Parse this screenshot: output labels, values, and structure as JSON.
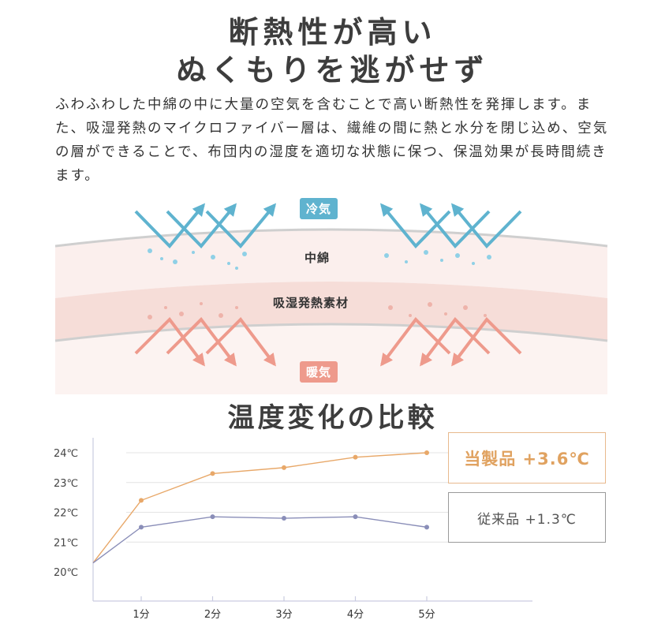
{
  "heading": {
    "line1": "断熱性が高い",
    "line2": "ぬくもりを逃がせず"
  },
  "description": "ふわふわした中綿の中に大量の空気を含むことで高い断熱性を発揮します。また、吸湿発熱のマイクロファイバー層は、繊維の間に熱と水分を閉じ込め、空気の層ができることで、布団内の湿度を適切な状態に保つ、保温効果が長時間続きます。",
  "diagram": {
    "cool_label": "冷気",
    "warm_label": "暖気",
    "layer_top": "中綿",
    "layer_bottom": "吸湿発熱素材",
    "colors": {
      "cool": "#5fb3cf",
      "warm": "#ee9a8c",
      "layer_top": "#fbeeec",
      "layer_bottom": "#f6dcd7"
    }
  },
  "chart_data": {
    "type": "line",
    "title": "温度変化の比較",
    "categories": [
      "1分",
      "2分",
      "3分",
      "4分",
      "5分"
    ],
    "y_ticks": [
      "20℃",
      "21℃",
      "22℃",
      "23℃",
      "24℃"
    ],
    "ylim": [
      20,
      24
    ],
    "grid": true,
    "series": [
      {
        "name": "当製品",
        "label": "当製品 +3.6℃",
        "color": "#e8a869",
        "start": 20.3,
        "values": [
          22.4,
          23.3,
          23.5,
          23.85,
          24.0
        ]
      },
      {
        "name": "従来品",
        "label": "従来品 +1.3℃",
        "color": "#8a8eb8",
        "start": 20.3,
        "values": [
          21.5,
          21.85,
          21.8,
          21.85,
          21.5
        ]
      }
    ]
  }
}
